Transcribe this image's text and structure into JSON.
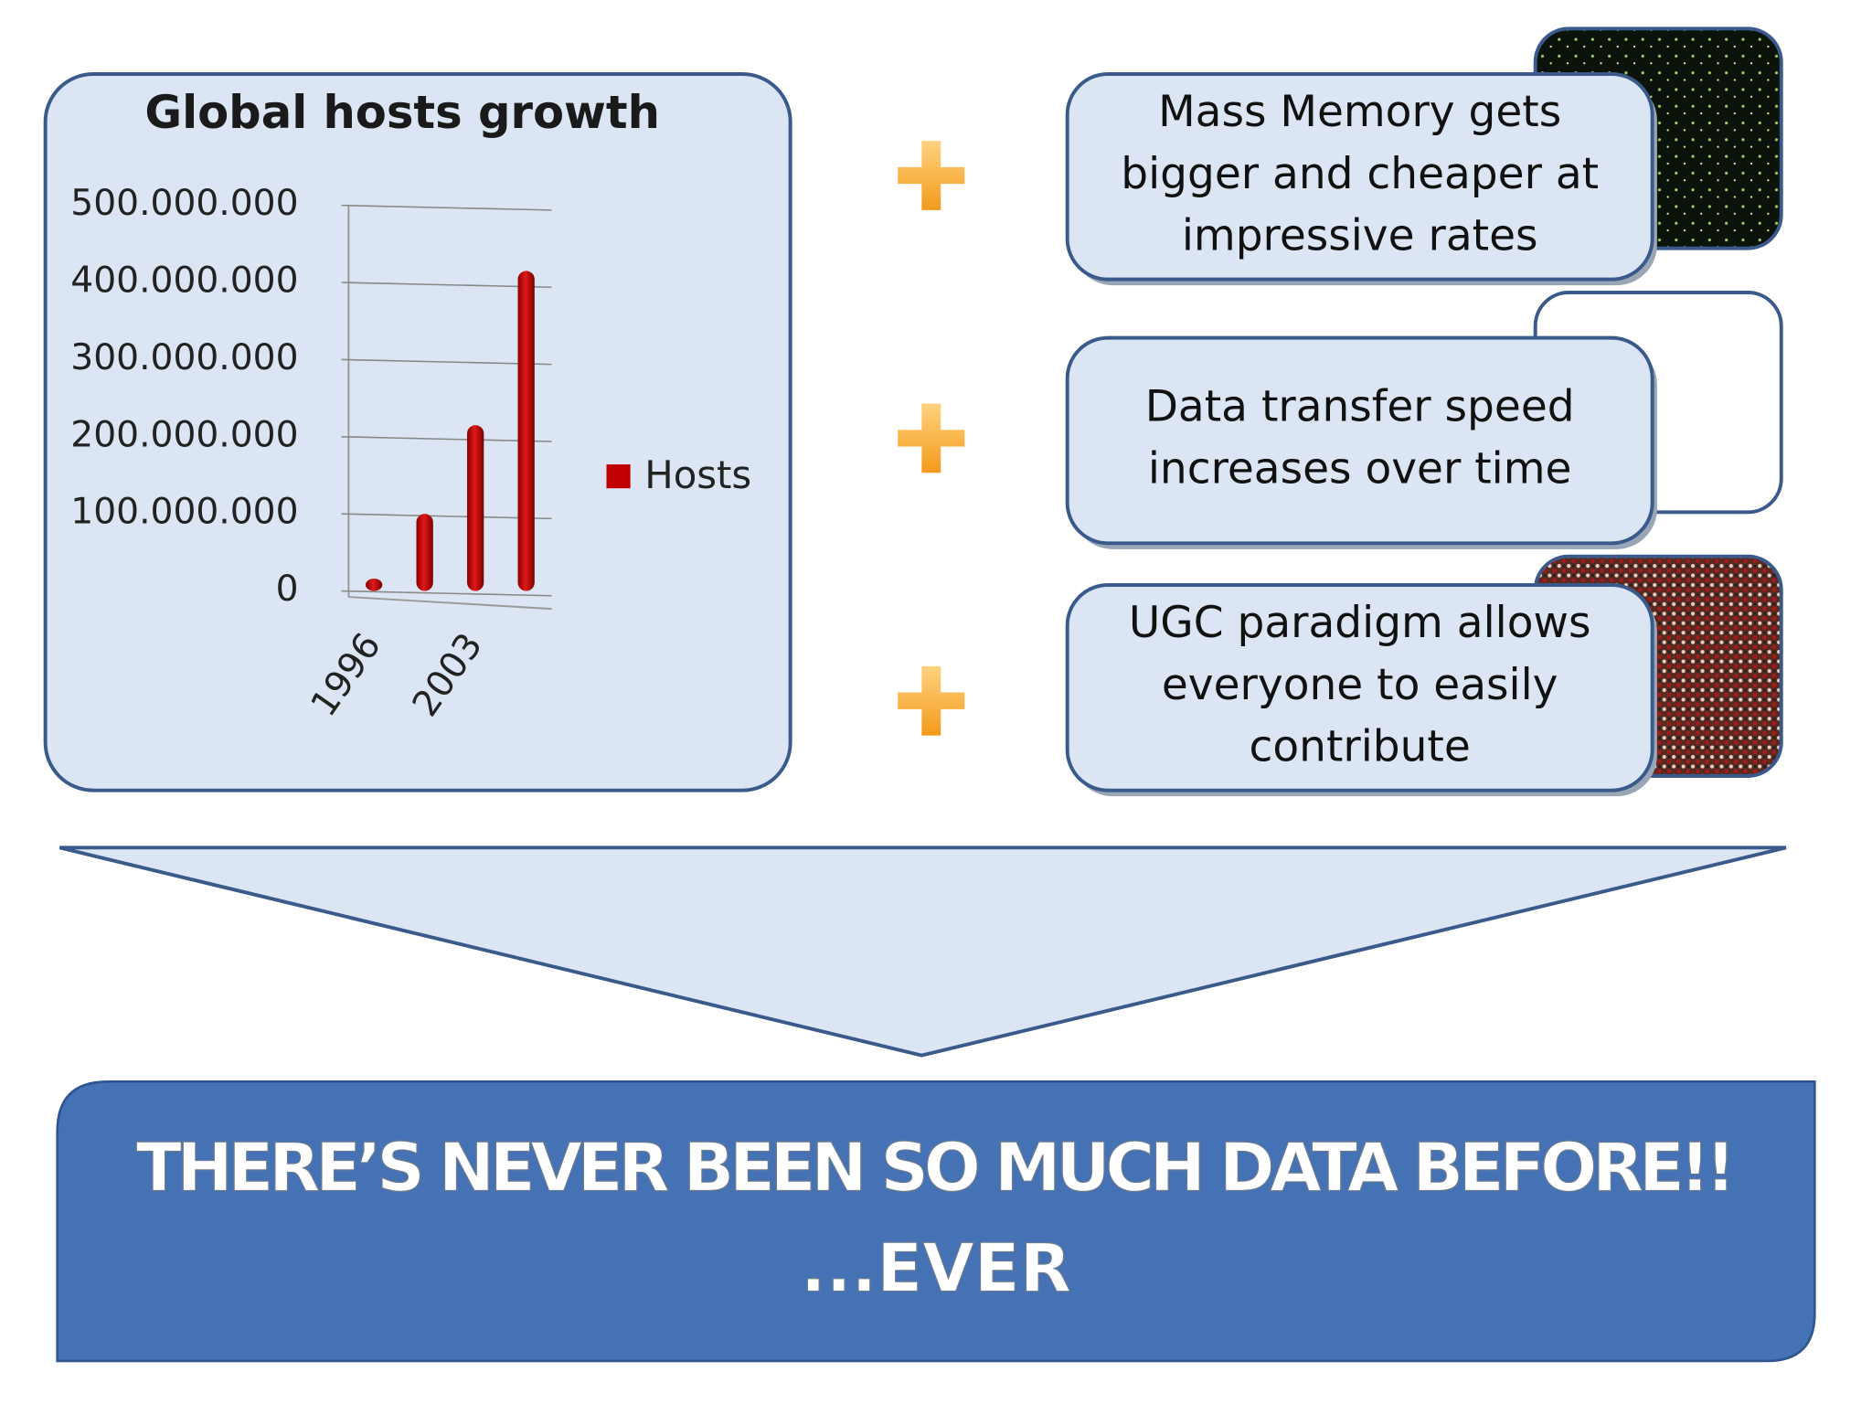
{
  "chart_data": {
    "type": "bar",
    "title": "Global hosts growth",
    "categories": [
      "1996",
      null,
      "2003",
      null
    ],
    "series": [
      {
        "name": "Hosts",
        "color": "#c00000",
        "values": [
          16000000,
          100000000,
          215000000,
          415000000
        ]
      }
    ],
    "ylim": [
      0,
      500000000
    ],
    "yticks": [
      0,
      {
        "value": 100000000,
        "label": "100.000.000"
      },
      {
        "value": 200000000,
        "label": "200.000.000"
      },
      {
        "value": 300000000,
        "label": "300.000.000"
      },
      {
        "value": 400000000,
        "label": "400.000.000"
      },
      {
        "value": 500000000,
        "label": "500.000.000"
      }
    ],
    "grid": true,
    "legend": "right"
  },
  "boxes": [
    {
      "lines": [
        "Mass Memory gets",
        "bigger and cheaper at",
        "impressive rates"
      ]
    },
    {
      "lines": [
        "Data transfer speed",
        "increases over time"
      ]
    },
    {
      "lines": [
        "UGC paradigm allows",
        "everyone to easily",
        "contribute"
      ]
    }
  ],
  "banner": {
    "lines": [
      "THERE’S NEVER BEEN SO MUCH DATA BEFORE!!",
      "...EVER"
    ]
  }
}
